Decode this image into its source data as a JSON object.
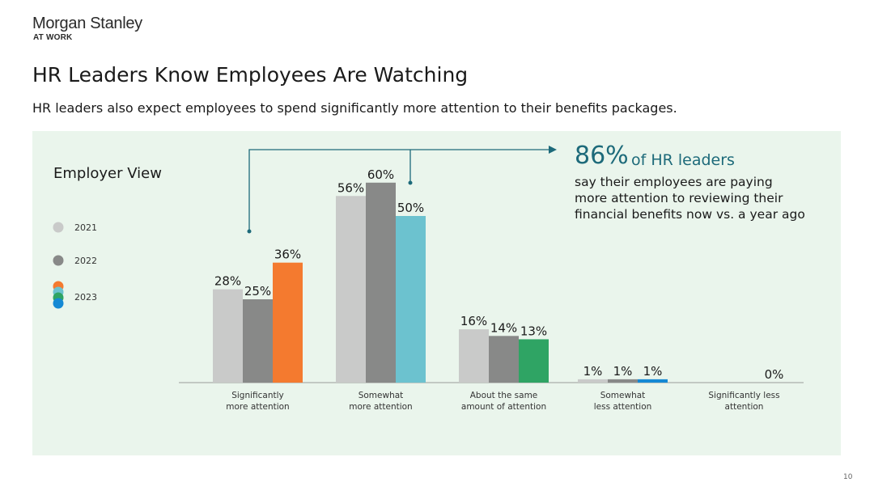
{
  "brand": {
    "name": "Morgan Stanley",
    "sub": "AT WORK"
  },
  "header": {
    "title": "HR Leaders Know Employees Are Watching",
    "subtitle": "HR leaders also expect employees to spend significantly more attention to their benefits packages."
  },
  "page_number": "10",
  "callout": {
    "stat": "86%",
    "stat_label": "of HR leaders",
    "lines": [
      "say their employees are paying",
      "more attention to reviewing their",
      "financial benefits now vs. a year ago"
    ]
  },
  "colors": {
    "y2021": "#c9cac9",
    "y2022": "#888988",
    "y2023": [
      "#f47a2f",
      "#6cc2cf",
      "#2fa464",
      "#1589d4"
    ],
    "callout": "#1d6a7a",
    "panel": "#eaf5ec"
  },
  "chart_data": {
    "type": "bar",
    "title": "Employer View",
    "categories": [
      [
        "Significantly",
        "more attention"
      ],
      [
        "Somewhat",
        "more attention"
      ],
      [
        "About the same",
        "amount of attention"
      ],
      [
        "Somewhat",
        "less attention"
      ],
      [
        "Significantly less",
        "attention"
      ]
    ],
    "series": [
      {
        "name": "2021",
        "values": [
          28,
          56,
          16,
          1,
          null
        ]
      },
      {
        "name": "2022",
        "values": [
          25,
          60,
          14,
          1,
          null
        ]
      },
      {
        "name": "2023",
        "values": [
          36,
          50,
          13,
          1,
          0
        ]
      }
    ],
    "value_suffix": "%",
    "legend": "left",
    "grid": false
  }
}
